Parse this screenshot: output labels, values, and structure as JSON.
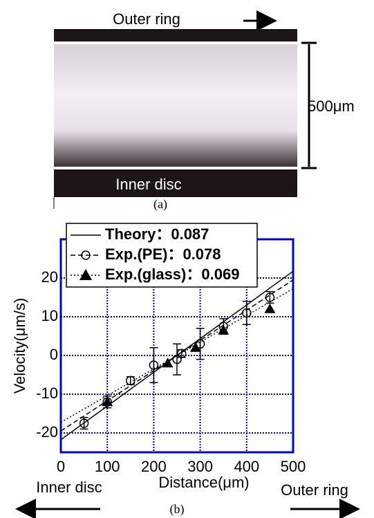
{
  "figure_a": {
    "top_label": "Outer ring",
    "scale_label": "500μm",
    "bottom_label": "Inner disc",
    "caption": "(a)"
  },
  "chart_data": {
    "type": "line",
    "caption": "(b)",
    "x_label": "Distance(μm)",
    "y_label": "Velocity(μm/s)",
    "xlim": [
      0,
      500
    ],
    "ylim": [
      -25,
      30
    ],
    "xticks": [
      0,
      100,
      200,
      300,
      400,
      500
    ],
    "yticks": [
      -20,
      -10,
      0,
      10,
      20
    ],
    "grid": true,
    "grid_color": "#0000cc",
    "legend": "top-left",
    "annotations": [
      "Inner disc",
      "Outer ring"
    ],
    "series": [
      {
        "name": "Theory：0.087",
        "color": "#000000",
        "line_style": "solid",
        "fit_x": [
          0,
          500
        ],
        "fit_values": [
          -21.75,
          21.75
        ]
      },
      {
        "name": "Exp.(PE)：0.078",
        "color": "#000000",
        "line_style": "dashed",
        "marker": "circle",
        "fit_x": [
          0,
          500
        ],
        "fit_values": [
          -19.5,
          19.5
        ],
        "x": [
          50,
          100,
          150,
          200,
          250,
          260,
          300,
          350,
          400,
          450
        ],
        "values": [
          -17.5,
          -12,
          -6.5,
          -2.5,
          -1,
          0.5,
          3,
          7.5,
          11,
          15
        ],
        "errors": [
          1.5,
          1.5,
          1,
          4.5,
          4,
          1,
          4,
          2,
          3,
          1.5
        ]
      },
      {
        "name": "Exp.(glass)：0.069",
        "color": "#000000",
        "line_style": "dotted",
        "marker": "triangle",
        "fit_x": [
          0,
          500
        ],
        "fit_values": [
          -17.25,
          17.25
        ],
        "x": [
          100,
          230,
          290,
          350,
          450
        ],
        "values": [
          -12,
          -2,
          2,
          6.5,
          12
        ]
      }
    ]
  }
}
